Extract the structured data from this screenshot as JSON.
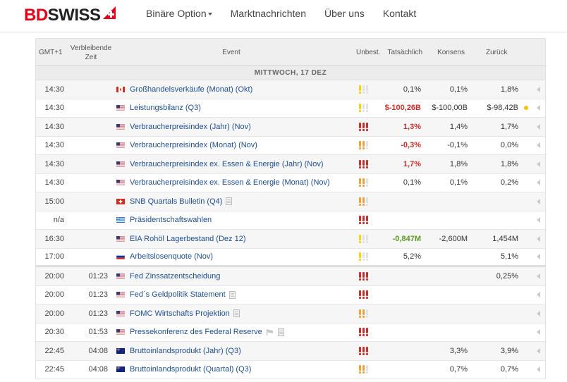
{
  "brand": {
    "left": "BD",
    "right": "SWISS",
    "red": "#e2001a"
  },
  "nav": [
    {
      "label": "Binäre Option",
      "dropdown": true
    },
    {
      "label": "Marktnachrichten",
      "dropdown": false
    },
    {
      "label": "Über uns",
      "dropdown": false
    },
    {
      "label": "Kontakt",
      "dropdown": false
    }
  ],
  "table": {
    "headers": {
      "gmt": "GMT+1",
      "remaining": "Verbleibende Zeit",
      "event": "Event",
      "unbest": "Unbest.",
      "actual": "Tatsächlich",
      "consensus": "Konsens",
      "previous": "Zurück"
    },
    "day_label": "MITTWOCH, 17 DEZ",
    "importance_colors": {
      "high": "#c9302c",
      "medium": "#f0a03c",
      "low": "#f3d21b",
      "off": "#e2e2e2"
    },
    "rows": [
      {
        "time": "14:30",
        "remaining": "",
        "flag": "ca",
        "event": "Großhandelsverkäufe (Monat) (Okt)",
        "importance": "low",
        "actual": "0,1%",
        "actual_style": "normal",
        "consensus": "0,1%",
        "previous": "1,8%",
        "dot": false,
        "icon": ""
      },
      {
        "time": "14:30",
        "remaining": "",
        "flag": "us",
        "event": "Leistungsbilanz (Q3)",
        "importance": "low",
        "actual": "$-100,26B",
        "actual_style": "red",
        "consensus": "$-100,00B",
        "previous": "$-98,42B",
        "dot": true,
        "icon": ""
      },
      {
        "time": "14:30",
        "remaining": "",
        "flag": "us",
        "event": "Verbraucherpreisindex (Jahr) (Nov)",
        "importance": "high",
        "actual": "1,3%",
        "actual_style": "red",
        "consensus": "1,4%",
        "previous": "1,7%",
        "dot": false,
        "icon": ""
      },
      {
        "time": "14:30",
        "remaining": "",
        "flag": "us",
        "event": "Verbraucherpreisindex (Monat) (Nov)",
        "importance": "medium",
        "actual": "-0,3%",
        "actual_style": "red",
        "consensus": "-0,1%",
        "previous": "0,0%",
        "dot": false,
        "icon": ""
      },
      {
        "time": "14:30",
        "remaining": "",
        "flag": "us",
        "event": "Verbraucherpreisindex ex. Essen & Energie (Jahr) (Nov)",
        "importance": "high",
        "actual": "1,7%",
        "actual_style": "red",
        "consensus": "1,8%",
        "previous": "1,8%",
        "dot": false,
        "icon": ""
      },
      {
        "time": "14:30",
        "remaining": "",
        "flag": "us",
        "event": "Verbraucherpreisindex ex. Essen & Energie (Monat) (Nov)",
        "importance": "medium",
        "actual": "0,1%",
        "actual_style": "normal",
        "consensus": "0,1%",
        "previous": "0,2%",
        "dot": false,
        "icon": ""
      },
      {
        "time": "15:00",
        "remaining": "",
        "flag": "ch",
        "event": "SNB Quartals Bulletin (Q4)",
        "importance": "medium",
        "actual": "",
        "actual_style": "normal",
        "consensus": "",
        "previous": "",
        "dot": false,
        "icon": "doc"
      },
      {
        "time": "n/a",
        "remaining": "",
        "flag": "gr",
        "event": "Präsidentschaftswahlen",
        "importance": "high",
        "actual": "",
        "actual_style": "normal",
        "consensus": "",
        "previous": "",
        "dot": false,
        "icon": ""
      },
      {
        "time": "16:30",
        "remaining": "",
        "flag": "us",
        "event": "EIA Rohöl Lagerbestand (Dez 12)",
        "importance": "low",
        "actual": "-0,847M",
        "actual_style": "green",
        "consensus": "-2,600M",
        "previous": "1,454M",
        "dot": false,
        "icon": ""
      },
      {
        "time": "17:00",
        "remaining": "",
        "flag": "ru",
        "event": "Arbeitslosenquote (Nov)",
        "importance": "low",
        "actual": "5,2%",
        "actual_style": "normal",
        "consensus": "",
        "previous": "5,1%",
        "dot": false,
        "icon": ""
      },
      {
        "time": "20:00",
        "remaining": "01:23",
        "flag": "us",
        "event": "Fed Zinssatzentscheidung",
        "importance": "high",
        "actual": "",
        "actual_style": "normal",
        "consensus": "",
        "previous": "0,25%",
        "dot": false,
        "icon": ""
      },
      {
        "time": "20:00",
        "remaining": "01:23",
        "flag": "us",
        "event": "Fed´s Geldpolitik Statement",
        "importance": "high",
        "actual": "",
        "actual_style": "normal",
        "consensus": "",
        "previous": "",
        "dot": false,
        "icon": "doc"
      },
      {
        "time": "20:00",
        "remaining": "01:23",
        "flag": "us",
        "event": "FOMC Wirtschafts Projektion",
        "importance": "medium",
        "actual": "",
        "actual_style": "normal",
        "consensus": "",
        "previous": "",
        "dot": false,
        "icon": "doc"
      },
      {
        "time": "20:30",
        "remaining": "01:53",
        "flag": "us",
        "event": "Pressekonferenz des Federal Reserve",
        "importance": "high",
        "actual": "",
        "actual_style": "normal",
        "consensus": "",
        "previous": "",
        "dot": false,
        "icon": "speaker-doc"
      },
      {
        "time": "22:45",
        "remaining": "04:08",
        "flag": "nz",
        "event": "Bruttoinlandsprodukt (Jahr) (Q3)",
        "importance": "high",
        "actual": "",
        "actual_style": "normal",
        "consensus": "3,3%",
        "previous": "3,9%",
        "dot": false,
        "icon": ""
      },
      {
        "time": "22:45",
        "remaining": "04:08",
        "flag": "nz",
        "event": "Bruttoinlandsprodukt (Quartal) (Q3)",
        "importance": "medium",
        "actual": "",
        "actual_style": "normal",
        "consensus": "0,7%",
        "previous": "0,7%",
        "dot": false,
        "icon": ""
      }
    ]
  }
}
